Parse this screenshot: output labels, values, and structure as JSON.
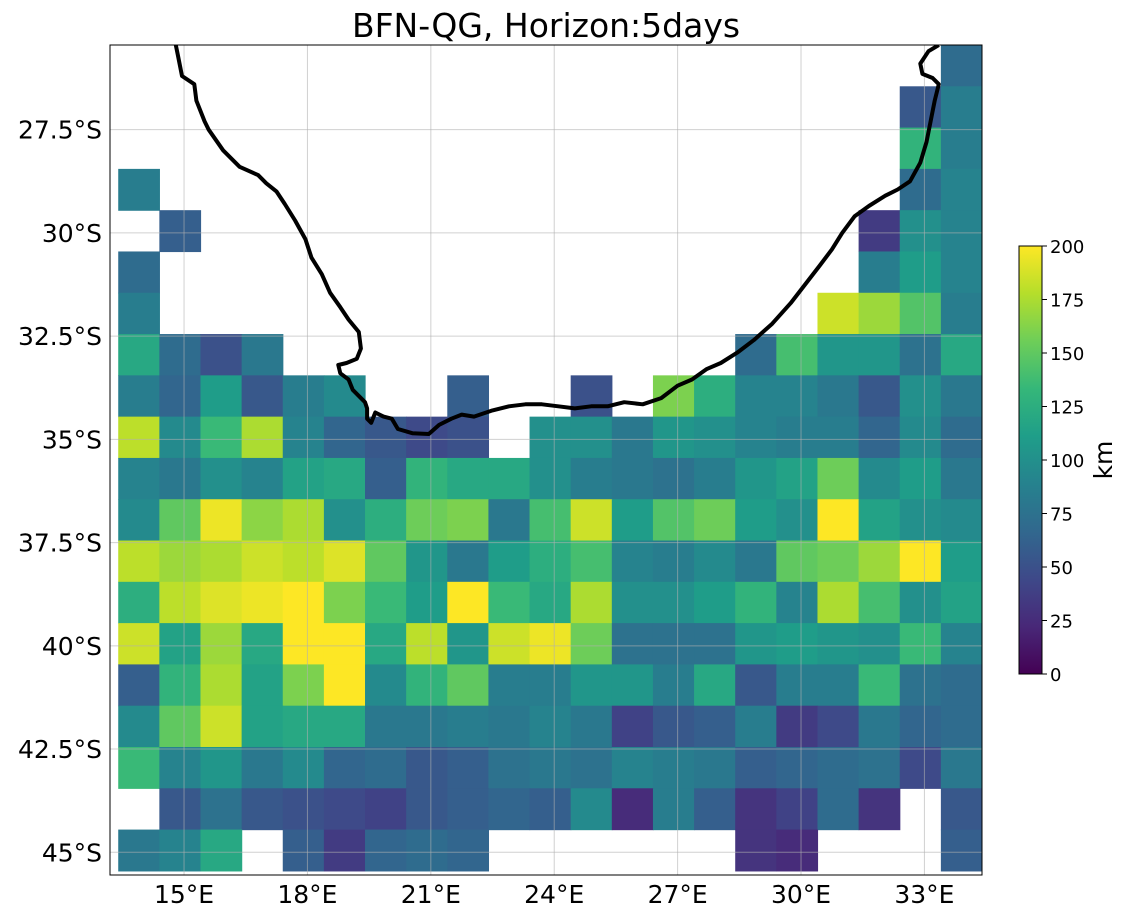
{
  "chart_data": {
    "type": "heatmap",
    "title": "BFN-QG, Horizon:5days",
    "x_ticks": [
      {
        "value": 15,
        "label": "15°E"
      },
      {
        "value": 18,
        "label": "18°E"
      },
      {
        "value": 21,
        "label": "21°E"
      },
      {
        "value": 24,
        "label": "24°E"
      },
      {
        "value": 27,
        "label": "27°E"
      },
      {
        "value": 30,
        "label": "30°E"
      },
      {
        "value": 33,
        "label": "33°E"
      }
    ],
    "y_ticks": [
      {
        "value": -27.5,
        "label": "27.5°S"
      },
      {
        "value": -30,
        "label": "30°S"
      },
      {
        "value": -32.5,
        "label": "32.5°S"
      },
      {
        "value": -35,
        "label": "35°S"
      },
      {
        "value": -37.5,
        "label": "37.5°S"
      },
      {
        "value": -40,
        "label": "40°S"
      },
      {
        "value": -42.5,
        "label": "42.5°S"
      },
      {
        "value": -45,
        "label": "45°S"
      }
    ],
    "xlim": [
      13.2,
      34.4
    ],
    "ylim": [
      -45.55,
      -25.45
    ],
    "grid": true,
    "cell_size_deg": 1,
    "lon_edges_start": 13.4,
    "lat_edges_start": -25.45,
    "colorbar": {
      "label": "km",
      "range": [
        0,
        200
      ],
      "ticks": [
        0,
        25,
        50,
        75,
        100,
        125,
        150,
        175,
        200
      ],
      "colormap": "viridis",
      "colors": [
        "#440154",
        "#482878",
        "#3e4989",
        "#31688e",
        "#26828e",
        "#1f9e89",
        "#35b779",
        "#6ece58",
        "#b5de2b",
        "#fde725"
      ]
    },
    "coastline_color": "#000000",
    "grid_values": [
      [
        null,
        null,
        null,
        null,
        null,
        null,
        null,
        null,
        null,
        null,
        null,
        null,
        null,
        null,
        null,
        null,
        null,
        null,
        null,
        null,
        70
      ],
      [
        null,
        null,
        null,
        null,
        null,
        null,
        null,
        null,
        null,
        null,
        null,
        null,
        null,
        null,
        null,
        null,
        null,
        null,
        null,
        55,
        85
      ],
      [
        null,
        null,
        null,
        null,
        null,
        null,
        null,
        null,
        null,
        null,
        null,
        null,
        null,
        null,
        null,
        null,
        null,
        null,
        null,
        130,
        85
      ],
      [
        85,
        null,
        null,
        null,
        null,
        null,
        null,
        null,
        null,
        null,
        null,
        null,
        null,
        null,
        null,
        null,
        null,
        null,
        null,
        70,
        90
      ],
      [
        null,
        60,
        null,
        null,
        null,
        null,
        null,
        null,
        null,
        null,
        null,
        null,
        null,
        null,
        null,
        null,
        null,
        null,
        35,
        100,
        90
      ],
      [
        70,
        null,
        null,
        null,
        null,
        null,
        null,
        null,
        null,
        null,
        null,
        null,
        null,
        null,
        null,
        null,
        null,
        null,
        85,
        110,
        90
      ],
      [
        85,
        null,
        null,
        null,
        null,
        null,
        null,
        null,
        null,
        null,
        null,
        null,
        null,
        null,
        null,
        null,
        null,
        185,
        170,
        145,
        85
      ],
      [
        120,
        70,
        50,
        80,
        null,
        null,
        null,
        null,
        null,
        null,
        null,
        null,
        null,
        null,
        null,
        70,
        140,
        105,
        105,
        75,
        120
      ],
      [
        85,
        65,
        110,
        55,
        85,
        95,
        null,
        null,
        60,
        null,
        null,
        50,
        null,
        160,
        125,
        90,
        90,
        80,
        55,
        100,
        80
      ],
      [
        180,
        95,
        135,
        175,
        90,
        65,
        55,
        45,
        50,
        null,
        100,
        100,
        80,
        105,
        100,
        90,
        85,
        85,
        65,
        95,
        70
      ],
      [
        90,
        80,
        100,
        90,
        115,
        120,
        60,
        130,
        120,
        120,
        100,
        85,
        80,
        75,
        85,
        105,
        115,
        155,
        95,
        110,
        80
      ],
      [
        95,
        150,
        195,
        165,
        175,
        100,
        125,
        155,
        160,
        80,
        140,
        185,
        110,
        145,
        155,
        110,
        100,
        200,
        115,
        100,
        95
      ],
      [
        180,
        170,
        175,
        185,
        180,
        190,
        150,
        105,
        80,
        110,
        125,
        140,
        90,
        85,
        95,
        80,
        150,
        155,
        170,
        200,
        110
      ],
      [
        125,
        180,
        190,
        195,
        200,
        160,
        135,
        110,
        200,
        135,
        120,
        175,
        100,
        100,
        110,
        130,
        90,
        175,
        140,
        100,
        115
      ],
      [
        185,
        115,
        170,
        120,
        200,
        200,
        120,
        180,
        105,
        185,
        195,
        155,
        75,
        75,
        75,
        105,
        110,
        105,
        100,
        135,
        90
      ],
      [
        60,
        130,
        175,
        115,
        160,
        200,
        95,
        130,
        150,
        85,
        85,
        105,
        105,
        85,
        120,
        55,
        85,
        85,
        135,
        75,
        70
      ],
      [
        95,
        150,
        185,
        115,
        120,
        120,
        80,
        80,
        85,
        80,
        90,
        80,
        40,
        55,
        60,
        85,
        35,
        45,
        80,
        65,
        70
      ],
      [
        135,
        90,
        105,
        80,
        95,
        65,
        70,
        55,
        60,
        75,
        80,
        75,
        90,
        85,
        80,
        60,
        65,
        70,
        75,
        45,
        80
      ],
      [
        null,
        55,
        75,
        55,
        50,
        45,
        40,
        55,
        60,
        65,
        60,
        95,
        25,
        85,
        60,
        30,
        40,
        70,
        30,
        null,
        55
      ],
      [
        80,
        90,
        120,
        null,
        60,
        35,
        65,
        70,
        65,
        null,
        null,
        null,
        null,
        null,
        null,
        30,
        25,
        null,
        null,
        null,
        60
      ]
    ],
    "coastline": [
      [
        14.8,
        -25.45
      ],
      [
        14.85,
        -25.7
      ],
      [
        14.95,
        -26.2
      ],
      [
        15.25,
        -26.4
      ],
      [
        15.3,
        -26.8
      ],
      [
        15.5,
        -27.3
      ],
      [
        15.6,
        -27.5
      ],
      [
        15.95,
        -28.0
      ],
      [
        16.35,
        -28.4
      ],
      [
        16.8,
        -28.6
      ],
      [
        17.0,
        -28.8
      ],
      [
        17.25,
        -29.0
      ],
      [
        17.45,
        -29.3
      ],
      [
        17.7,
        -29.7
      ],
      [
        17.95,
        -30.15
      ],
      [
        18.1,
        -30.6
      ],
      [
        18.35,
        -31.0
      ],
      [
        18.55,
        -31.45
      ],
      [
        18.8,
        -31.8
      ],
      [
        19.0,
        -32.1
      ],
      [
        19.25,
        -32.4
      ],
      [
        19.3,
        -32.8
      ],
      [
        19.2,
        -33.05
      ],
      [
        18.95,
        -33.15
      ],
      [
        18.75,
        -33.2
      ],
      [
        18.8,
        -33.4
      ],
      [
        19.0,
        -33.55
      ],
      [
        19.1,
        -33.8
      ],
      [
        19.4,
        -34.1
      ],
      [
        19.45,
        -34.25
      ],
      [
        19.45,
        -34.5
      ],
      [
        19.55,
        -34.6
      ],
      [
        19.65,
        -34.35
      ],
      [
        19.85,
        -34.45
      ],
      [
        20.05,
        -34.5
      ],
      [
        20.2,
        -34.75
      ],
      [
        20.55,
        -34.85
      ],
      [
        20.95,
        -34.87
      ],
      [
        21.2,
        -34.65
      ],
      [
        21.5,
        -34.5
      ],
      [
        21.75,
        -34.4
      ],
      [
        22.05,
        -34.45
      ],
      [
        22.5,
        -34.3
      ],
      [
        22.9,
        -34.2
      ],
      [
        23.3,
        -34.15
      ],
      [
        23.7,
        -34.15
      ],
      [
        24.1,
        -34.2
      ],
      [
        24.5,
        -34.25
      ],
      [
        24.9,
        -34.2
      ],
      [
        25.3,
        -34.2
      ],
      [
        25.7,
        -34.1
      ],
      [
        26.15,
        -34.15
      ],
      [
        26.6,
        -34.0
      ],
      [
        27.0,
        -33.7
      ],
      [
        27.35,
        -33.55
      ],
      [
        27.7,
        -33.3
      ],
      [
        28.05,
        -33.15
      ],
      [
        28.45,
        -32.9
      ],
      [
        28.85,
        -32.6
      ],
      [
        29.3,
        -32.2
      ],
      [
        29.75,
        -31.7
      ],
      [
        30.1,
        -31.25
      ],
      [
        30.45,
        -30.8
      ],
      [
        30.75,
        -30.4
      ],
      [
        31.0,
        -30.0
      ],
      [
        31.3,
        -29.6
      ],
      [
        31.65,
        -29.35
      ],
      [
        32.05,
        -29.1
      ],
      [
        32.35,
        -28.95
      ],
      [
        32.65,
        -28.75
      ],
      [
        32.9,
        -28.3
      ],
      [
        33.05,
        -27.8
      ],
      [
        33.15,
        -27.3
      ],
      [
        33.25,
        -26.8
      ],
      [
        33.35,
        -26.4
      ],
      [
        33.2,
        -26.25
      ],
      [
        32.95,
        -26.15
      ],
      [
        32.9,
        -25.9
      ],
      [
        33.1,
        -25.6
      ],
      [
        33.35,
        -25.45
      ]
    ]
  }
}
